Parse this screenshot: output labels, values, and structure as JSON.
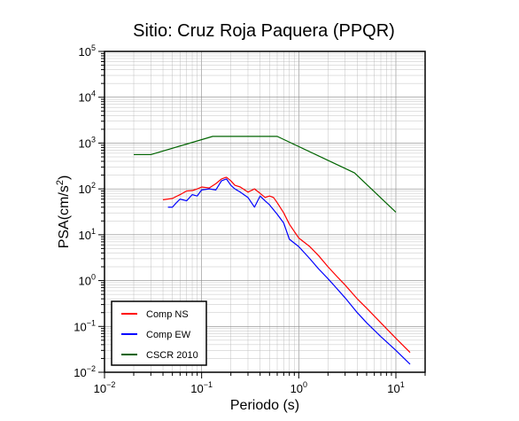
{
  "chart_data": {
    "type": "line",
    "title": "Sitio: Cruz Roja Paquera (PPQR)",
    "xlabel": "Periodo (s)",
    "ylabel_base": "PSA(cm/s",
    "ylabel_sup": "2",
    "ylabel_end": ")",
    "xscale": "log",
    "yscale": "log",
    "xlim": [
      0.01,
      20
    ],
    "ylim": [
      0.01,
      100000
    ],
    "x_ticks": [
      {
        "base": "10",
        "exp": "−2"
      },
      {
        "base": "10",
        "exp": "−1"
      },
      {
        "base": "10",
        "exp": "0"
      },
      {
        "base": "10",
        "exp": "1"
      }
    ],
    "y_ticks": [
      {
        "base": "10",
        "exp": "−2"
      },
      {
        "base": "10",
        "exp": "−1"
      },
      {
        "base": "10",
        "exp": "0"
      },
      {
        "base": "10",
        "exp": "1"
      },
      {
        "base": "10",
        "exp": "2"
      },
      {
        "base": "10",
        "exp": "3"
      },
      {
        "base": "10",
        "exp": "4"
      },
      {
        "base": "10",
        "exp": "5"
      }
    ],
    "grid": true,
    "legend_position": "bottom-left",
    "series": [
      {
        "name": "Comp NS",
        "color": "#ff0000",
        "x": [
          0.04,
          0.05,
          0.06,
          0.07,
          0.08,
          0.09,
          0.1,
          0.12,
          0.14,
          0.16,
          0.18,
          0.2,
          0.22,
          0.25,
          0.3,
          0.35,
          0.4,
          0.45,
          0.5,
          0.55,
          0.6,
          0.7,
          0.8,
          1.0,
          1.3,
          1.6,
          2.0,
          2.5,
          3.0,
          4.0,
          5.0,
          7.0,
          10.0,
          14.0
        ],
        "y": [
          58,
          62,
          75,
          90,
          92,
          100,
          110,
          105,
          130,
          165,
          180,
          150,
          120,
          110,
          85,
          100,
          80,
          65,
          70,
          65,
          50,
          30,
          17,
          8.5,
          5.5,
          3.5,
          2.0,
          1.2,
          0.8,
          0.4,
          0.25,
          0.12,
          0.055,
          0.027
        ]
      },
      {
        "name": "Comp EW",
        "color": "#0000ff",
        "x": [
          0.045,
          0.05,
          0.055,
          0.06,
          0.07,
          0.08,
          0.09,
          0.1,
          0.12,
          0.14,
          0.16,
          0.18,
          0.2,
          0.22,
          0.25,
          0.3,
          0.35,
          0.4,
          0.45,
          0.5,
          0.6,
          0.7,
          0.8,
          1.0,
          1.3,
          1.6,
          2.0,
          2.5,
          3.0,
          4.0,
          5.0,
          7.0,
          10.0,
          14.0
        ],
        "y": [
          40,
          40,
          50,
          60,
          55,
          75,
          70,
          95,
          100,
          95,
          150,
          165,
          120,
          100,
          85,
          65,
          40,
          70,
          55,
          45,
          28,
          18,
          8,
          5.5,
          3.0,
          1.8,
          1.1,
          0.65,
          0.42,
          0.2,
          0.12,
          0.06,
          0.03,
          0.015
        ]
      },
      {
        "name": "CSCR 2010",
        "color": "#006400",
        "x": [
          0.02,
          0.03,
          0.13,
          0.6,
          3.75,
          10.0
        ],
        "y": [
          560,
          560,
          1400,
          1400,
          224,
          31
        ]
      }
    ]
  }
}
